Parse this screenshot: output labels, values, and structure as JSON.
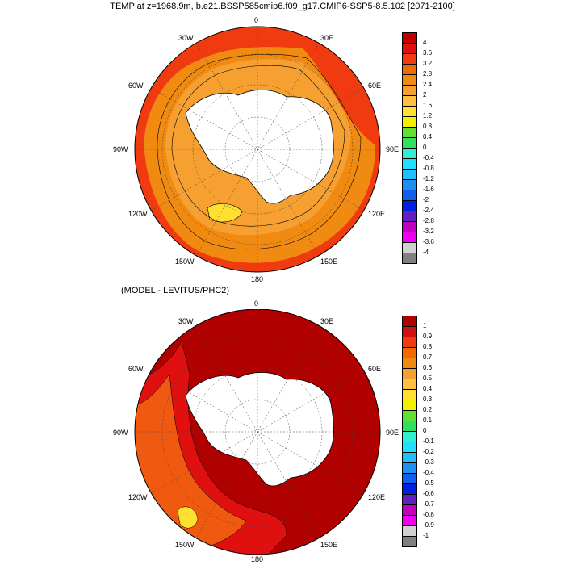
{
  "title": "TEMP at z=1968.9m, b.e21.BSSP585cmip6.f09_g17.CMIP6-SSP5-8.5.102 [2071-2100]",
  "subtitle": "(MODEL - LEVITUS/PHC2)",
  "lon_labels": [
    "0",
    "30E",
    "60E",
    "90E",
    "120E",
    "150E",
    "180",
    "150W",
    "120W",
    "90W",
    "60W",
    "30W"
  ],
  "top_colorbar": {
    "labels": [
      "4",
      "3.6",
      "3.2",
      "2.8",
      "2.4",
      "2",
      "1.6",
      "1.2",
      "0.8",
      "0.4",
      "0",
      "-0.4",
      "-0.8",
      "-1.2",
      "-1.6",
      "-2",
      "-2.4",
      "-2.8",
      "-3.2",
      "-3.6",
      "-4"
    ],
    "colors": [
      "#c00000",
      "#e01010",
      "#f03a10",
      "#f06a00",
      "#f08a10",
      "#f5a030",
      "#ffc040",
      "#ffe030",
      "#f0f000",
      "#60e030",
      "#30e060",
      "#30f0d0",
      "#20e0ff",
      "#20c0ff",
      "#2090f0",
      "#1060f0",
      "#0020e0",
      "#6020c0",
      "#c000c0",
      "#f000f0",
      "#d0d0d0",
      "#808080"
    ]
  },
  "bottom_colorbar": {
    "labels": [
      "1",
      "0.9",
      "0.8",
      "0.7",
      "0.6",
      "0.5",
      "0.4",
      "0.3",
      "0.2",
      "0.1",
      "0",
      "-0.1",
      "-0.2",
      "-0.3",
      "-0.4",
      "-0.5",
      "-0.6",
      "-0.7",
      "-0.8",
      "-0.9",
      "-1"
    ],
    "colors": [
      "#b00000",
      "#d01010",
      "#f03a10",
      "#f06a00",
      "#f08a10",
      "#f5a030",
      "#ffc040",
      "#ffe030",
      "#f0f000",
      "#60e030",
      "#30e060",
      "#30f0d0",
      "#20e0ff",
      "#20c0ff",
      "#2090f0",
      "#1060f0",
      "#0020e0",
      "#6020c0",
      "#c000c0",
      "#f000f0",
      "#d0d0d0",
      "#808080"
    ]
  },
  "maps": {
    "top": {
      "ocean_base": "#f08a10",
      "outer": "#f03a10",
      "inner": "#f5a030",
      "continent": "#ffffff",
      "inner_patch": "#ffe030"
    },
    "bottom": {
      "ocean_base": "#b00000",
      "anomaly_1": "#e01010",
      "anomaly_2": "#f05a10",
      "anomaly_3": "#ffe030",
      "continent": "#ffffff"
    }
  }
}
